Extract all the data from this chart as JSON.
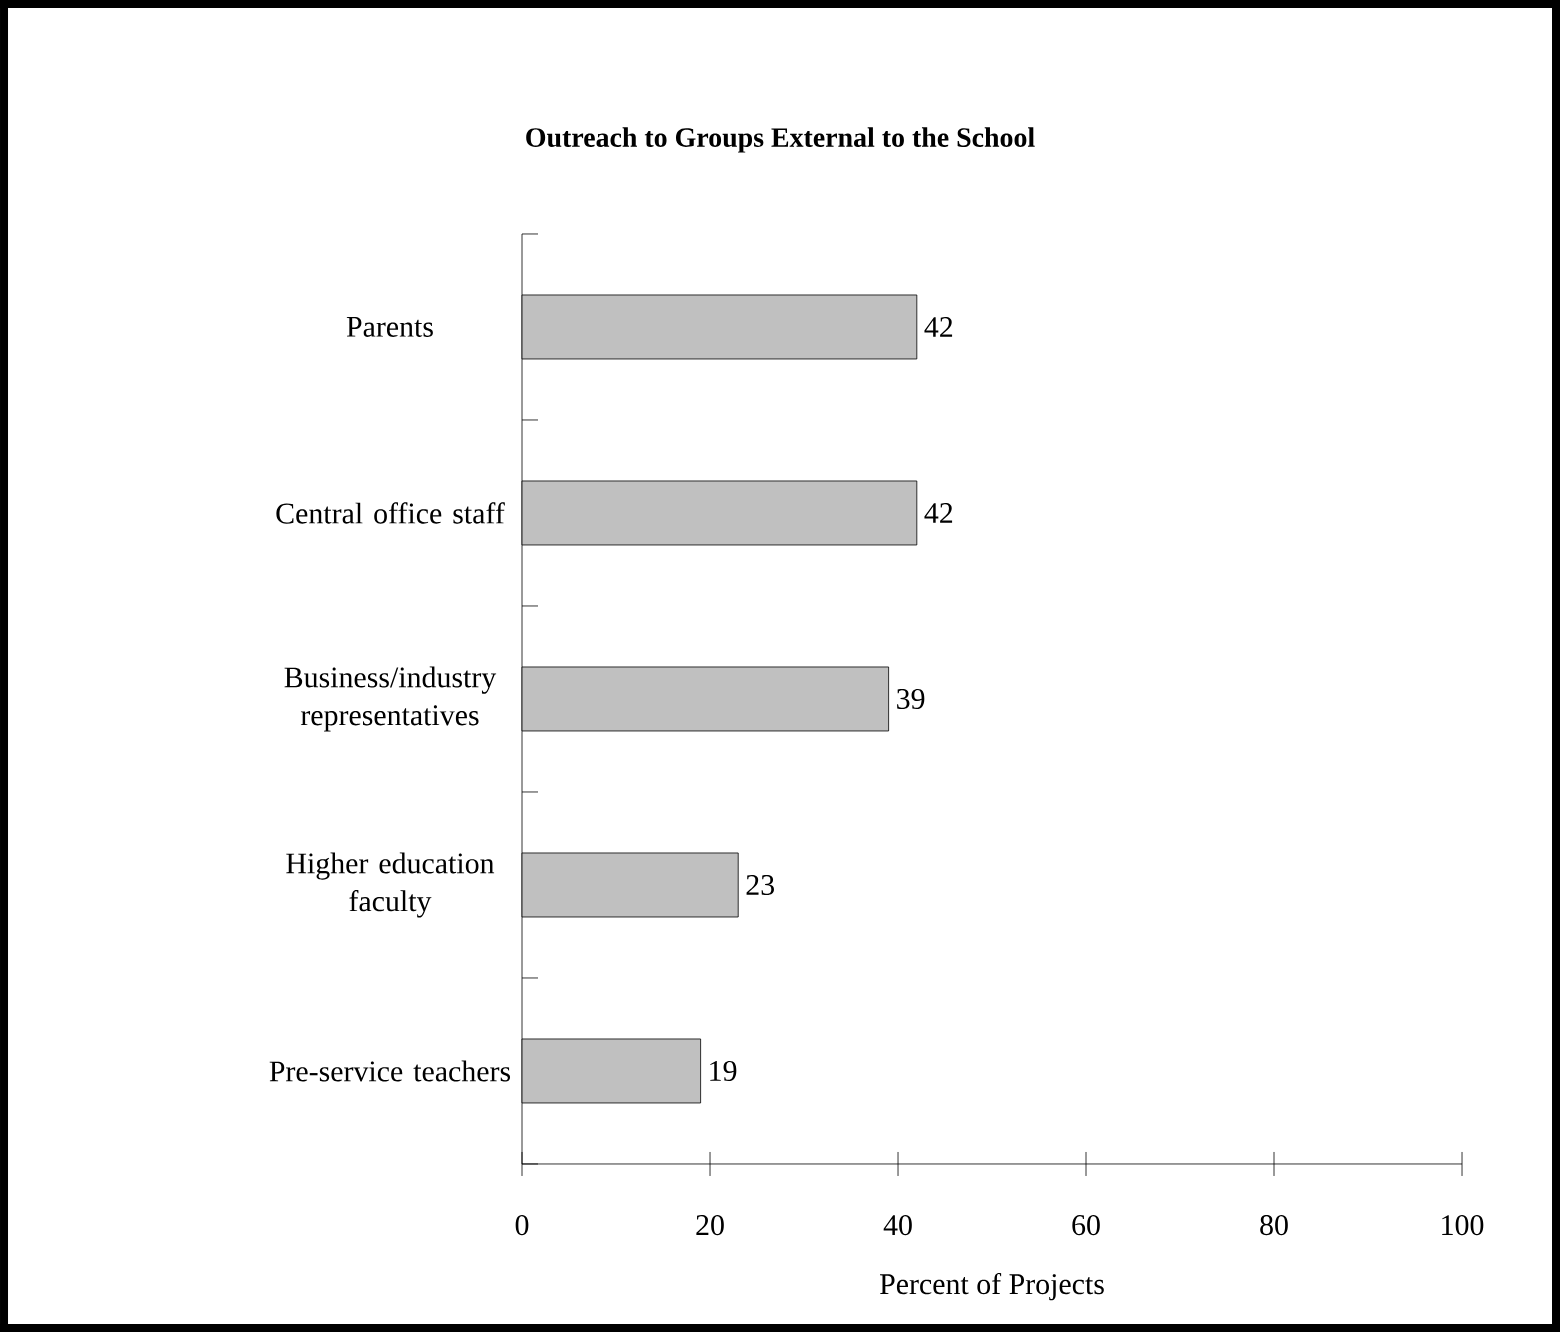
{
  "chart_data": {
    "type": "bar",
    "orientation": "horizontal",
    "title": "Outreach to Groups External to the School",
    "xlabel": "Percent of Projects",
    "categories": [
      "Parents",
      "Central office staff",
      "Business/industry representatives",
      "Higher education faculty",
      "Pre-service teachers"
    ],
    "values": [
      42,
      42,
      39,
      23,
      19
    ],
    "color": "#c0c0c0",
    "data_labels": true,
    "xlim": [
      0,
      100
    ],
    "xticks": [
      0,
      20,
      40,
      60,
      80,
      100
    ],
    "grid": false
  }
}
